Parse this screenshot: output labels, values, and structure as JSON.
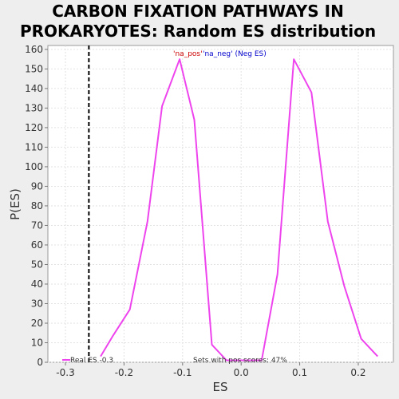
{
  "chart_data": {
    "type": "line",
    "title_line1": "CARBON FIXATION PATHWAYS IN",
    "title_line2": "PROKARYOTES: Random ES distribution",
    "xlabel": "ES",
    "ylabel": "P(ES)",
    "xlim": [
      -0.33,
      0.26
    ],
    "ylim": [
      0,
      162
    ],
    "x_ticks": [
      "-0.3",
      "-0.2",
      "-0.1",
      "0.0",
      "0.1",
      "0.2"
    ],
    "x_tick_values": [
      -0.3,
      -0.2,
      -0.1,
      0.0,
      0.1,
      0.2
    ],
    "y_ticks": [
      0,
      10,
      20,
      30,
      40,
      50,
      60,
      70,
      80,
      90,
      100,
      110,
      120,
      130,
      140,
      150,
      160
    ],
    "grid": true,
    "series": [
      {
        "color": "#ee44ee",
        "x": [
          -0.24,
          -0.22,
          -0.19,
          -0.16,
          -0.135,
          -0.105,
          -0.08,
          -0.05,
          -0.025,
          0.035,
          0.062,
          0.09,
          0.12,
          0.148,
          0.176,
          0.205,
          0.233
        ],
        "y": [
          3,
          13,
          27,
          72,
          131,
          155,
          124,
          9,
          1,
          1,
          45,
          155,
          138,
          72,
          39,
          12,
          3
        ]
      }
    ],
    "real_es": -0.26,
    "real_es_color": "#000000",
    "legend_pos": "'na_pos'",
    "legend_neg": "'na_neg' (Neg ES)",
    "legend_pos_color": "#cc0000",
    "legend_neg_color": "#0000cc",
    "bottom_left_text": "Real ES -0.3",
    "bottom_right_text": "Sets with pos scores: 47%"
  }
}
